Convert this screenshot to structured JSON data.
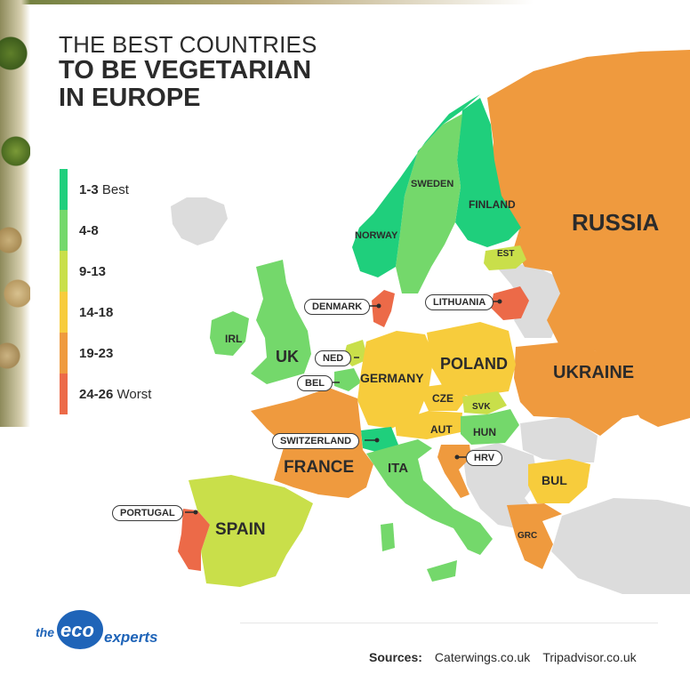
{
  "title": {
    "line1": "THE BEST COUNTRIES",
    "line2": "TO BE VEGETARIAN",
    "line3": "IN EUROPE"
  },
  "colors": {
    "rank_1_3": "#1fcf7c",
    "rank_4_8": "#74d86b",
    "rank_9_13": "#c9df4a",
    "rank_14_18": "#f7cc3c",
    "rank_19_23": "#ef9a3e",
    "rank_24_26": "#ec6a48",
    "not_ranked": "#dcdcdc"
  },
  "legend": [
    {
      "range": "1-3",
      "suffix": " Best",
      "color_key": "rank_1_3"
    },
    {
      "range": "4-8",
      "suffix": "",
      "color_key": "rank_4_8"
    },
    {
      "range": "9-13",
      "suffix": "",
      "color_key": "rank_9_13"
    },
    {
      "range": "14-18",
      "suffix": "",
      "color_key": "rank_14_18"
    },
    {
      "range": "19-23",
      "suffix": "",
      "color_key": "rank_19_23"
    },
    {
      "range": "24-26",
      "suffix": " Worst",
      "color_key": "rank_24_26"
    }
  ],
  "countries": {
    "russia": {
      "label": "RUSSIA",
      "group": "19-23"
    },
    "finland": {
      "label": "FINLAND",
      "group": "1-3"
    },
    "sweden": {
      "label": "SWEDEN",
      "group": "4-8"
    },
    "norway": {
      "label": "NORWAY",
      "group": "1-3"
    },
    "estonia": {
      "label": "EST",
      "group": "9-13"
    },
    "lithuania": {
      "label": "LITHUANIA",
      "group": "24-26"
    },
    "denmark": {
      "label": "DENMARK",
      "group": "24-26"
    },
    "ireland": {
      "label": "IRL",
      "group": "4-8"
    },
    "uk": {
      "label": "UK",
      "group": "4-8"
    },
    "netherlands": {
      "label": "NED",
      "group": "9-13"
    },
    "belgium": {
      "label": "BEL",
      "group": "4-8"
    },
    "germany": {
      "label": "GERMANY",
      "group": "14-18"
    },
    "poland": {
      "label": "POLAND",
      "group": "14-18"
    },
    "ukraine": {
      "label": "UKRAINE",
      "group": "19-23"
    },
    "czechia": {
      "label": "CZE",
      "group": "14-18"
    },
    "slovakia": {
      "label": "SVK",
      "group": "9-13"
    },
    "austria": {
      "label": "AUT",
      "group": "14-18"
    },
    "hungary": {
      "label": "HUN",
      "group": "4-8"
    },
    "switzerland": {
      "label": "SWITZERLAND",
      "group": "1-3"
    },
    "croatia": {
      "label": "HRV",
      "group": "19-23"
    },
    "france": {
      "label": "FRANCE",
      "group": "19-23"
    },
    "italy": {
      "label": "ITA",
      "group": "4-8"
    },
    "bulgaria": {
      "label": "BUL",
      "group": "14-18"
    },
    "greece": {
      "label": "GRC",
      "group": "19-23"
    },
    "spain": {
      "label": "SPAIN",
      "group": "9-13"
    },
    "portugal": {
      "label": "PORTUGAL",
      "group": "24-26"
    }
  },
  "logo": {
    "prefix": "the",
    "brand": "eco",
    "suffix": "experts"
  },
  "footer": {
    "label": "Sources:",
    "sources": [
      "Caterwings.co.uk",
      "Tripadvisor.co.uk"
    ]
  }
}
